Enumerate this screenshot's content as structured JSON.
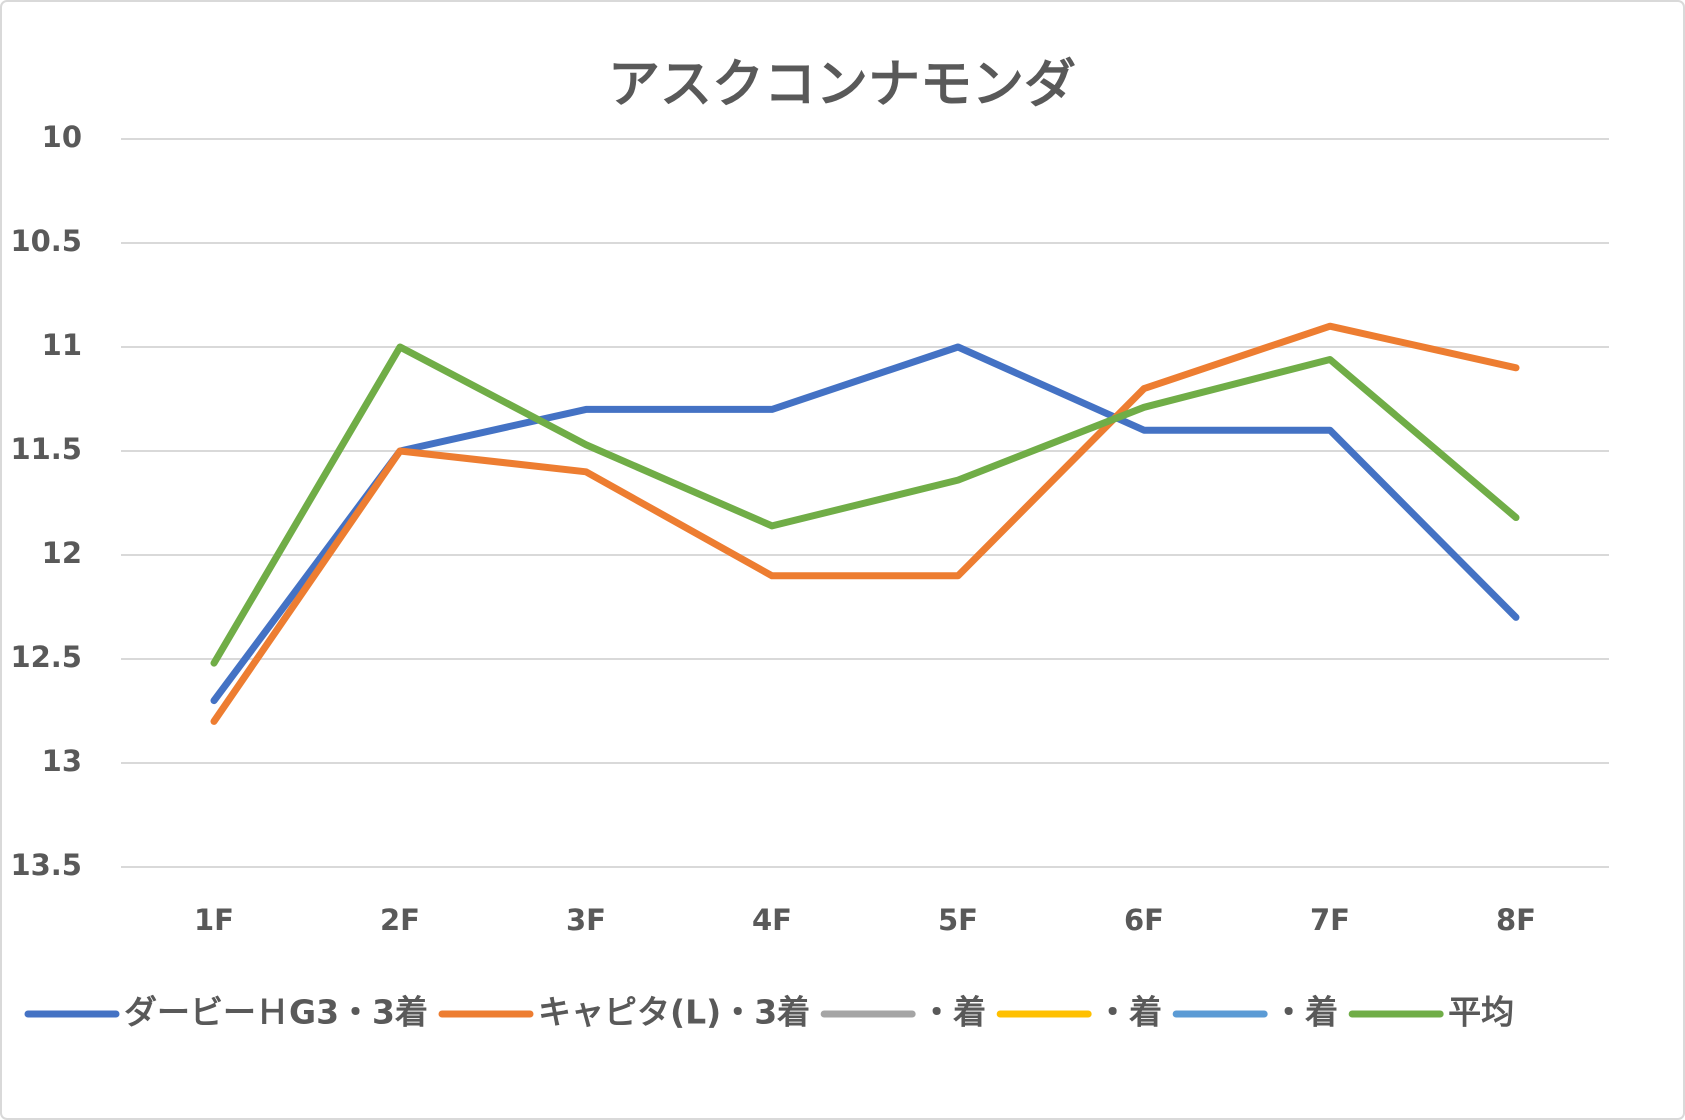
{
  "chart_data": {
    "type": "line",
    "title": "アスクコンナモンダ",
    "categories": [
      "1F",
      "2F",
      "3F",
      "4F",
      "5F",
      "6F",
      "7F",
      "8F"
    ],
    "series": [
      {
        "name": "ダービーＨG3・3着",
        "color": "#4472c4",
        "values": [
          12.7,
          11.5,
          11.3,
          11.3,
          11.0,
          11.4,
          11.4,
          12.3
        ]
      },
      {
        "name": "キャピタ(L)・3着",
        "color": "#ed7d31",
        "values": [
          12.8,
          11.5,
          11.6,
          12.1,
          12.1,
          11.2,
          10.9,
          11.1
        ]
      },
      {
        "name": "・着",
        "color": "#a5a5a5",
        "values": [
          null,
          null,
          null,
          null,
          null,
          null,
          null,
          null
        ]
      },
      {
        "name": "・着",
        "color": "#ffc000",
        "values": [
          null,
          null,
          null,
          null,
          null,
          null,
          null,
          null
        ]
      },
      {
        "name": "・着",
        "color": "#5b9bd5",
        "values": [
          null,
          null,
          null,
          null,
          null,
          null,
          null,
          null
        ]
      },
      {
        "name": "平均",
        "color": "#70ad47",
        "values": [
          12.52,
          11.0,
          11.47,
          11.86,
          11.64,
          11.29,
          11.06,
          11.82
        ]
      }
    ],
    "ylim": [
      10,
      13.5
    ],
    "yticks": [
      10,
      10.5,
      11,
      11.5,
      12,
      12.5,
      13,
      13.5
    ],
    "y_inverted": true,
    "grid": true,
    "legend": "bottom"
  }
}
